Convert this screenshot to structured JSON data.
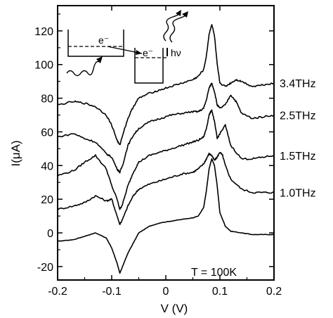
{
  "chart_data": {
    "type": "line",
    "title": "",
    "xlabel": "V (V)",
    "ylabel": "I(μA)",
    "xlim": [
      -0.2,
      0.2
    ],
    "ylim": [
      -28,
      135
    ],
    "xticks": [
      -0.2,
      -0.1,
      0,
      0.1,
      0.2
    ],
    "xtick_labels": [
      "-0.2",
      "-0.1",
      "0",
      "0.1",
      "0.2"
    ],
    "yticks": [
      -20,
      0,
      20,
      40,
      60,
      80,
      100,
      120
    ],
    "ytick_labels": [
      "-20",
      "0",
      "20",
      "40",
      "60",
      "80",
      "100",
      "120"
    ],
    "annotation": "T = 100K",
    "inset": {
      "electron_label": "e⁻",
      "photon_label": "hν"
    },
    "series": [
      {
        "name": "",
        "x": [
          -0.2,
          -0.17,
          -0.15,
          -0.13,
          -0.11,
          -0.1,
          -0.09,
          -0.085,
          -0.08,
          -0.07,
          -0.06,
          -0.05,
          -0.03,
          -0.01,
          0.01,
          0.03,
          0.05,
          0.06,
          0.07,
          0.075,
          0.08,
          0.085,
          0.09,
          0.095,
          0.1,
          0.11,
          0.12,
          0.14,
          0.16,
          0.18,
          0.2
        ],
        "y": [
          -5,
          -4,
          -2,
          0,
          -3,
          -9,
          -18,
          -24,
          -20,
          -12,
          -6,
          0,
          4,
          6,
          7,
          8,
          9,
          10,
          15,
          25,
          38,
          44,
          40,
          28,
          12,
          4,
          1,
          0,
          -1,
          -1,
          -1
        ]
      },
      {
        "name": "1.0THz",
        "x": [
          -0.2,
          -0.17,
          -0.15,
          -0.13,
          -0.11,
          -0.1,
          -0.09,
          -0.085,
          -0.08,
          -0.07,
          -0.06,
          -0.05,
          -0.03,
          -0.01,
          0.01,
          0.03,
          0.05,
          0.06,
          0.07,
          0.075,
          0.08,
          0.085,
          0.09,
          0.095,
          0.1,
          0.105,
          0.11,
          0.12,
          0.14,
          0.16,
          0.18,
          0.2
        ],
        "y": [
          14,
          16,
          18,
          22,
          19,
          20,
          10,
          5,
          8,
          16,
          22,
          26,
          29,
          31,
          33,
          35,
          36,
          38,
          41,
          44,
          47,
          46,
          43,
          45,
          48,
          46,
          40,
          32,
          26,
          24,
          24,
          24
        ]
      },
      {
        "name": "1.5THz",
        "x": [
          -0.2,
          -0.17,
          -0.15,
          -0.13,
          -0.11,
          -0.1,
          -0.09,
          -0.085,
          -0.08,
          -0.07,
          -0.06,
          -0.05,
          -0.03,
          -0.01,
          0.01,
          0.03,
          0.05,
          0.06,
          0.07,
          0.075,
          0.08,
          0.085,
          0.09,
          0.095,
          0.1,
          0.11,
          0.12,
          0.14,
          0.16,
          0.18,
          0.2
        ],
        "y": [
          34,
          37,
          42,
          46,
          38,
          28,
          20,
          14,
          17,
          28,
          36,
          42,
          46,
          48,
          50,
          52,
          54,
          55,
          57,
          62,
          70,
          73,
          66,
          56,
          59,
          64,
          52,
          44,
          44,
          45,
          46
        ]
      },
      {
        "name": "2.5THz",
        "x": [
          -0.2,
          -0.17,
          -0.15,
          -0.13,
          -0.11,
          -0.1,
          -0.09,
          -0.085,
          -0.08,
          -0.07,
          -0.06,
          -0.05,
          -0.03,
          -0.01,
          0.01,
          0.03,
          0.05,
          0.06,
          0.07,
          0.075,
          0.08,
          0.085,
          0.09,
          0.095,
          0.1,
          0.11,
          0.12,
          0.13,
          0.14,
          0.16,
          0.18,
          0.2
        ],
        "y": [
          57,
          59,
          56,
          54,
          47,
          45,
          38,
          36,
          40,
          52,
          58,
          62,
          66,
          68,
          70,
          71,
          72,
          72,
          74,
          79,
          86,
          89,
          84,
          76,
          74,
          76,
          82,
          78,
          71,
          68,
          69,
          70
        ]
      },
      {
        "name": "3.4THz",
        "x": [
          -0.2,
          -0.17,
          -0.15,
          -0.13,
          -0.11,
          -0.1,
          -0.09,
          -0.085,
          -0.08,
          -0.07,
          -0.06,
          -0.05,
          -0.03,
          -0.01,
          0.01,
          0.03,
          0.05,
          0.06,
          0.07,
          0.075,
          0.08,
          0.085,
          0.09,
          0.095,
          0.1,
          0.11,
          0.12,
          0.13,
          0.14,
          0.16,
          0.18,
          0.2
        ],
        "y": [
          76,
          78,
          77,
          75,
          70,
          64,
          55,
          52,
          58,
          68,
          75,
          80,
          83,
          85,
          87,
          89,
          91,
          93,
          97,
          105,
          118,
          124,
          117,
          100,
          89,
          87,
          89,
          91,
          90,
          87,
          88,
          89
        ]
      }
    ]
  }
}
